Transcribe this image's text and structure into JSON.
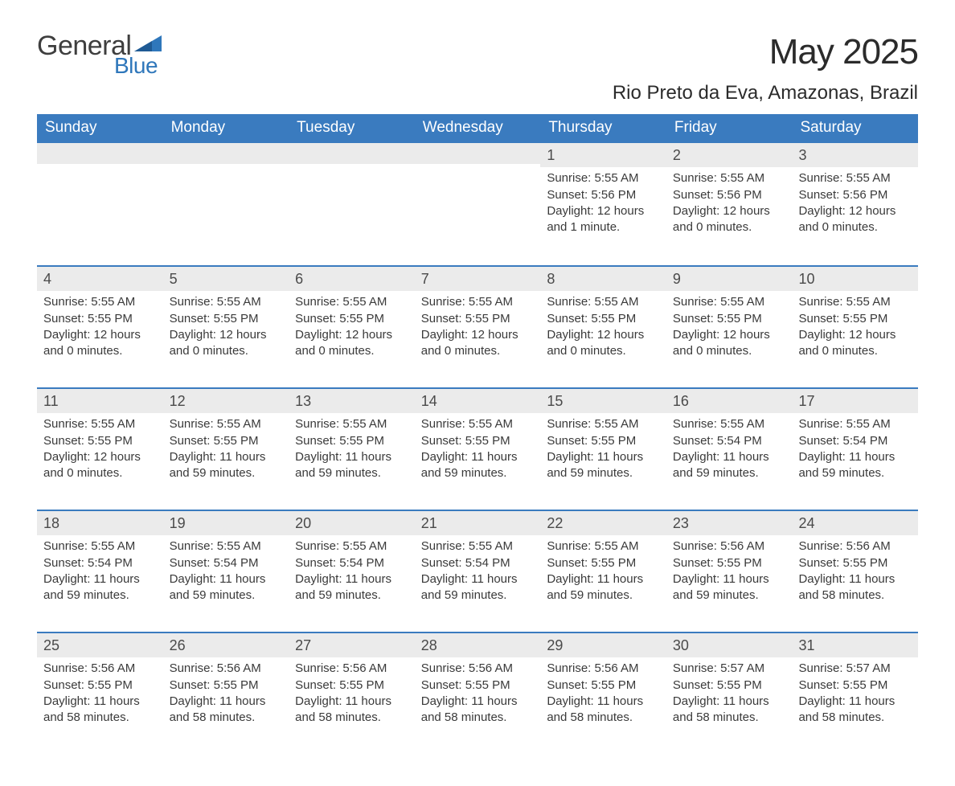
{
  "logo": {
    "general": "General",
    "blue": "Blue",
    "accent_color": "#2f77bb"
  },
  "header": {
    "month_title": "May 2025",
    "location": "Rio Preto da Eva, Amazonas, Brazil"
  },
  "colors": {
    "dow_bg": "#3a7bbf",
    "dow_text": "#ffffff",
    "daynum_bg": "#ebebeb",
    "week_border": "#3a7bbf",
    "body_text": "#3a3a3a",
    "page_bg": "#ffffff"
  },
  "days_of_week": [
    "Sunday",
    "Monday",
    "Tuesday",
    "Wednesday",
    "Thursday",
    "Friday",
    "Saturday"
  ],
  "weeks": [
    [
      {
        "num": "",
        "sunrise": "",
        "sunset": "",
        "daylight": ""
      },
      {
        "num": "",
        "sunrise": "",
        "sunset": "",
        "daylight": ""
      },
      {
        "num": "",
        "sunrise": "",
        "sunset": "",
        "daylight": ""
      },
      {
        "num": "",
        "sunrise": "",
        "sunset": "",
        "daylight": ""
      },
      {
        "num": "1",
        "sunrise": "Sunrise: 5:55 AM",
        "sunset": "Sunset: 5:56 PM",
        "daylight": "Daylight: 12 hours and 1 minute."
      },
      {
        "num": "2",
        "sunrise": "Sunrise: 5:55 AM",
        "sunset": "Sunset: 5:56 PM",
        "daylight": "Daylight: 12 hours and 0 minutes."
      },
      {
        "num": "3",
        "sunrise": "Sunrise: 5:55 AM",
        "sunset": "Sunset: 5:56 PM",
        "daylight": "Daylight: 12 hours and 0 minutes."
      }
    ],
    [
      {
        "num": "4",
        "sunrise": "Sunrise: 5:55 AM",
        "sunset": "Sunset: 5:55 PM",
        "daylight": "Daylight: 12 hours and 0 minutes."
      },
      {
        "num": "5",
        "sunrise": "Sunrise: 5:55 AM",
        "sunset": "Sunset: 5:55 PM",
        "daylight": "Daylight: 12 hours and 0 minutes."
      },
      {
        "num": "6",
        "sunrise": "Sunrise: 5:55 AM",
        "sunset": "Sunset: 5:55 PM",
        "daylight": "Daylight: 12 hours and 0 minutes."
      },
      {
        "num": "7",
        "sunrise": "Sunrise: 5:55 AM",
        "sunset": "Sunset: 5:55 PM",
        "daylight": "Daylight: 12 hours and 0 minutes."
      },
      {
        "num": "8",
        "sunrise": "Sunrise: 5:55 AM",
        "sunset": "Sunset: 5:55 PM",
        "daylight": "Daylight: 12 hours and 0 minutes."
      },
      {
        "num": "9",
        "sunrise": "Sunrise: 5:55 AM",
        "sunset": "Sunset: 5:55 PM",
        "daylight": "Daylight: 12 hours and 0 minutes."
      },
      {
        "num": "10",
        "sunrise": "Sunrise: 5:55 AM",
        "sunset": "Sunset: 5:55 PM",
        "daylight": "Daylight: 12 hours and 0 minutes."
      }
    ],
    [
      {
        "num": "11",
        "sunrise": "Sunrise: 5:55 AM",
        "sunset": "Sunset: 5:55 PM",
        "daylight": "Daylight: 12 hours and 0 minutes."
      },
      {
        "num": "12",
        "sunrise": "Sunrise: 5:55 AM",
        "sunset": "Sunset: 5:55 PM",
        "daylight": "Daylight: 11 hours and 59 minutes."
      },
      {
        "num": "13",
        "sunrise": "Sunrise: 5:55 AM",
        "sunset": "Sunset: 5:55 PM",
        "daylight": "Daylight: 11 hours and 59 minutes."
      },
      {
        "num": "14",
        "sunrise": "Sunrise: 5:55 AM",
        "sunset": "Sunset: 5:55 PM",
        "daylight": "Daylight: 11 hours and 59 minutes."
      },
      {
        "num": "15",
        "sunrise": "Sunrise: 5:55 AM",
        "sunset": "Sunset: 5:55 PM",
        "daylight": "Daylight: 11 hours and 59 minutes."
      },
      {
        "num": "16",
        "sunrise": "Sunrise: 5:55 AM",
        "sunset": "Sunset: 5:54 PM",
        "daylight": "Daylight: 11 hours and 59 minutes."
      },
      {
        "num": "17",
        "sunrise": "Sunrise: 5:55 AM",
        "sunset": "Sunset: 5:54 PM",
        "daylight": "Daylight: 11 hours and 59 minutes."
      }
    ],
    [
      {
        "num": "18",
        "sunrise": "Sunrise: 5:55 AM",
        "sunset": "Sunset: 5:54 PM",
        "daylight": "Daylight: 11 hours and 59 minutes."
      },
      {
        "num": "19",
        "sunrise": "Sunrise: 5:55 AM",
        "sunset": "Sunset: 5:54 PM",
        "daylight": "Daylight: 11 hours and 59 minutes."
      },
      {
        "num": "20",
        "sunrise": "Sunrise: 5:55 AM",
        "sunset": "Sunset: 5:54 PM",
        "daylight": "Daylight: 11 hours and 59 minutes."
      },
      {
        "num": "21",
        "sunrise": "Sunrise: 5:55 AM",
        "sunset": "Sunset: 5:54 PM",
        "daylight": "Daylight: 11 hours and 59 minutes."
      },
      {
        "num": "22",
        "sunrise": "Sunrise: 5:55 AM",
        "sunset": "Sunset: 5:55 PM",
        "daylight": "Daylight: 11 hours and 59 minutes."
      },
      {
        "num": "23",
        "sunrise": "Sunrise: 5:56 AM",
        "sunset": "Sunset: 5:55 PM",
        "daylight": "Daylight: 11 hours and 59 minutes."
      },
      {
        "num": "24",
        "sunrise": "Sunrise: 5:56 AM",
        "sunset": "Sunset: 5:55 PM",
        "daylight": "Daylight: 11 hours and 58 minutes."
      }
    ],
    [
      {
        "num": "25",
        "sunrise": "Sunrise: 5:56 AM",
        "sunset": "Sunset: 5:55 PM",
        "daylight": "Daylight: 11 hours and 58 minutes."
      },
      {
        "num": "26",
        "sunrise": "Sunrise: 5:56 AM",
        "sunset": "Sunset: 5:55 PM",
        "daylight": "Daylight: 11 hours and 58 minutes."
      },
      {
        "num": "27",
        "sunrise": "Sunrise: 5:56 AM",
        "sunset": "Sunset: 5:55 PM",
        "daylight": "Daylight: 11 hours and 58 minutes."
      },
      {
        "num": "28",
        "sunrise": "Sunrise: 5:56 AM",
        "sunset": "Sunset: 5:55 PM",
        "daylight": "Daylight: 11 hours and 58 minutes."
      },
      {
        "num": "29",
        "sunrise": "Sunrise: 5:56 AM",
        "sunset": "Sunset: 5:55 PM",
        "daylight": "Daylight: 11 hours and 58 minutes."
      },
      {
        "num": "30",
        "sunrise": "Sunrise: 5:57 AM",
        "sunset": "Sunset: 5:55 PM",
        "daylight": "Daylight: 11 hours and 58 minutes."
      },
      {
        "num": "31",
        "sunrise": "Sunrise: 5:57 AM",
        "sunset": "Sunset: 5:55 PM",
        "daylight": "Daylight: 11 hours and 58 minutes."
      }
    ]
  ]
}
